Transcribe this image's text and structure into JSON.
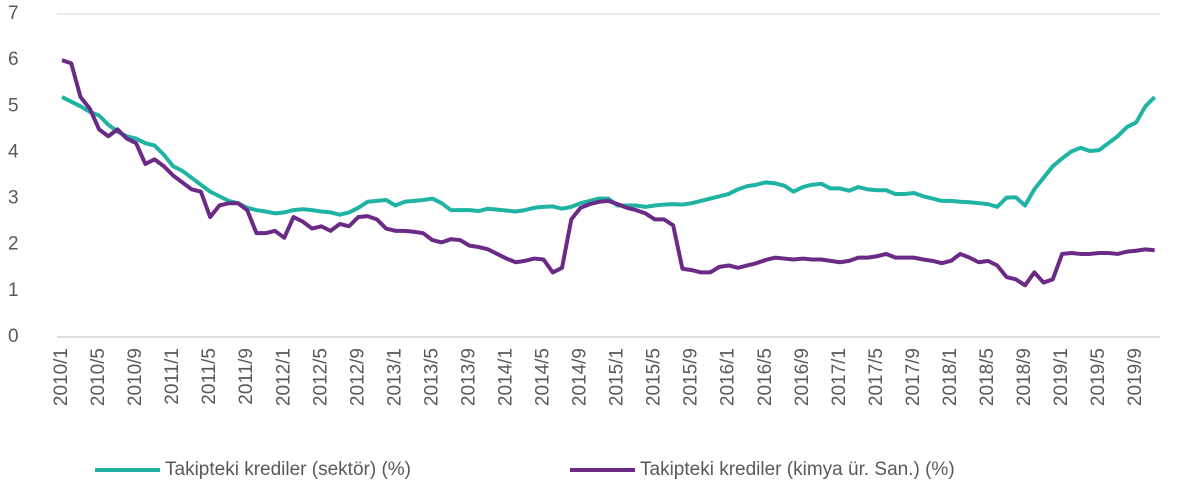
{
  "chart_data": {
    "type": "line",
    "categories": [
      "2010/1",
      null,
      null,
      null,
      "2010/5",
      null,
      null,
      null,
      "2010/9",
      null,
      null,
      null,
      "2011/1",
      null,
      null,
      null,
      "2011/5",
      null,
      null,
      null,
      "2011/9",
      null,
      null,
      null,
      "2012/1",
      null,
      null,
      null,
      "2012/5",
      null,
      null,
      null,
      "2012/9",
      null,
      null,
      null,
      "2013/1",
      null,
      null,
      null,
      "2013/5",
      null,
      null,
      null,
      "2013/9",
      null,
      null,
      null,
      "2014/1",
      null,
      null,
      null,
      "2014/5",
      null,
      null,
      null,
      "2014/9",
      null,
      null,
      null,
      "2015/1",
      null,
      null,
      null,
      "2015/5",
      null,
      null,
      null,
      "2015/9",
      null,
      null,
      null,
      "2016/1",
      null,
      null,
      null,
      "2016/5",
      null,
      null,
      null,
      "2016/9",
      null,
      null,
      null,
      "2017/1",
      null,
      null,
      null,
      "2017/5",
      null,
      null,
      null,
      "2017/9",
      null,
      null,
      null,
      "2018/1",
      null,
      null,
      null,
      "2018/5",
      null,
      null,
      null,
      "2018/9",
      null,
      null,
      null,
      "2019/1",
      null,
      null,
      null,
      "2019/5",
      null,
      null,
      null,
      "2019/9",
      null,
      null
    ],
    "series": [
      {
        "name": "Takipteki krediler (sektör) (%)",
        "color": "#1fb3a3",
        "values": [
          5.2,
          5.1,
          5.0,
          4.88,
          4.8,
          4.6,
          4.45,
          4.35,
          4.3,
          4.2,
          4.15,
          3.95,
          3.7,
          3.6,
          3.45,
          3.3,
          3.15,
          3.05,
          2.95,
          2.9,
          2.8,
          2.75,
          2.72,
          2.68,
          2.7,
          2.75,
          2.77,
          2.75,
          2.72,
          2.7,
          2.65,
          2.7,
          2.8,
          2.93,
          2.95,
          2.97,
          2.85,
          2.93,
          2.95,
          2.97,
          3.0,
          2.9,
          2.75,
          2.75,
          2.75,
          2.73,
          2.78,
          2.76,
          2.74,
          2.72,
          2.75,
          2.8,
          2.82,
          2.83,
          2.78,
          2.82,
          2.9,
          2.95,
          3.0,
          3.0,
          2.85,
          2.85,
          2.85,
          2.82,
          2.85,
          2.87,
          2.88,
          2.87,
          2.9,
          2.95,
          3.0,
          3.05,
          3.1,
          3.2,
          3.27,
          3.3,
          3.35,
          3.33,
          3.28,
          3.15,
          3.25,
          3.3,
          3.32,
          3.22,
          3.22,
          3.17,
          3.25,
          3.2,
          3.18,
          3.18,
          3.1,
          3.1,
          3.12,
          3.05,
          3.0,
          2.95,
          2.95,
          2.93,
          2.92,
          2.9,
          2.88,
          2.82,
          3.02,
          3.03,
          2.85,
          3.2,
          3.45,
          3.7,
          3.87,
          4.02,
          4.1,
          4.03,
          4.05,
          4.2,
          4.35,
          4.55,
          4.65,
          5.0,
          5.2
        ]
      },
      {
        "name": "Takipteki krediler (kimya ür. San.) (%)",
        "color": "#6b2a85",
        "values": [
          6.0,
          5.93,
          5.2,
          4.95,
          4.5,
          4.35,
          4.5,
          4.3,
          4.2,
          3.75,
          3.85,
          3.7,
          3.5,
          3.35,
          3.2,
          3.15,
          2.6,
          2.85,
          2.9,
          2.9,
          2.75,
          2.25,
          2.25,
          2.3,
          2.15,
          2.6,
          2.5,
          2.35,
          2.4,
          2.3,
          2.45,
          2.4,
          2.6,
          2.62,
          2.55,
          2.35,
          2.3,
          2.3,
          2.28,
          2.25,
          2.1,
          2.05,
          2.12,
          2.1,
          1.98,
          1.95,
          1.9,
          1.8,
          1.7,
          1.62,
          1.65,
          1.7,
          1.68,
          1.4,
          1.5,
          2.55,
          2.8,
          2.88,
          2.93,
          2.95,
          2.88,
          2.8,
          2.75,
          2.68,
          2.55,
          2.55,
          2.42,
          1.48,
          1.45,
          1.4,
          1.4,
          1.52,
          1.55,
          1.5,
          1.55,
          1.6,
          1.67,
          1.72,
          1.7,
          1.68,
          1.7,
          1.68,
          1.68,
          1.65,
          1.62,
          1.65,
          1.72,
          1.72,
          1.75,
          1.8,
          1.72,
          1.72,
          1.72,
          1.68,
          1.65,
          1.6,
          1.65,
          1.8,
          1.72,
          1.62,
          1.65,
          1.55,
          1.3,
          1.25,
          1.12,
          1.4,
          1.18,
          1.25,
          1.8,
          1.82,
          1.8,
          1.8,
          1.82,
          1.82,
          1.8,
          1.85,
          1.87,
          1.9,
          1.88
        ]
      }
    ],
    "ylim": [
      0,
      7
    ],
    "yticks": [
      0,
      1,
      2,
      3,
      4,
      5,
      6,
      7
    ],
    "grid": false,
    "legend": "bottom"
  }
}
